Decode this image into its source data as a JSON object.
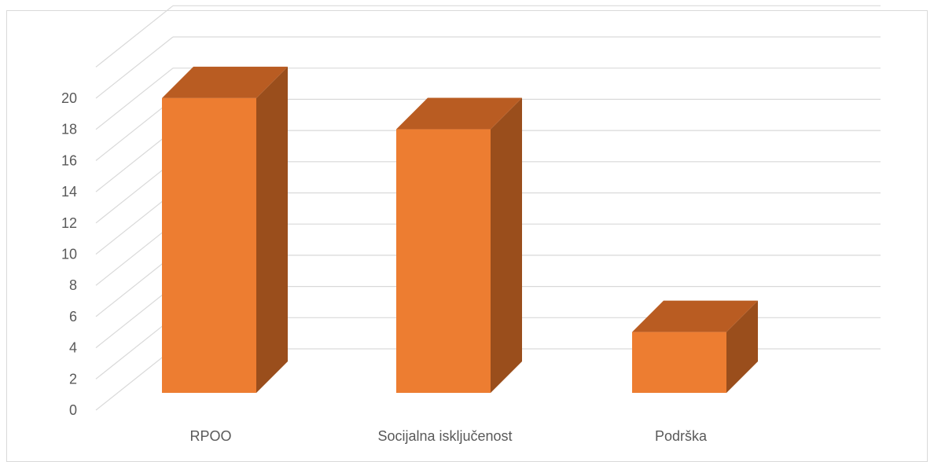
{
  "chart_data": {
    "type": "bar",
    "style": "3d-column",
    "categories": [
      "RPOO",
      "Socijalna isključenost",
      "Podrška"
    ],
    "values": [
      19,
      17,
      4
    ],
    "ylim": [
      0,
      20
    ],
    "yticks": [
      0,
      2,
      4,
      6,
      8,
      10,
      12,
      14,
      16,
      18,
      20
    ],
    "grid": true,
    "legend": "none",
    "colors": {
      "bar_front": "#ed7d31",
      "bar_top": "#b95c22",
      "bar_side": "#9a4e1c",
      "gridline": "#d9d9d9",
      "text": "#595959"
    }
  }
}
